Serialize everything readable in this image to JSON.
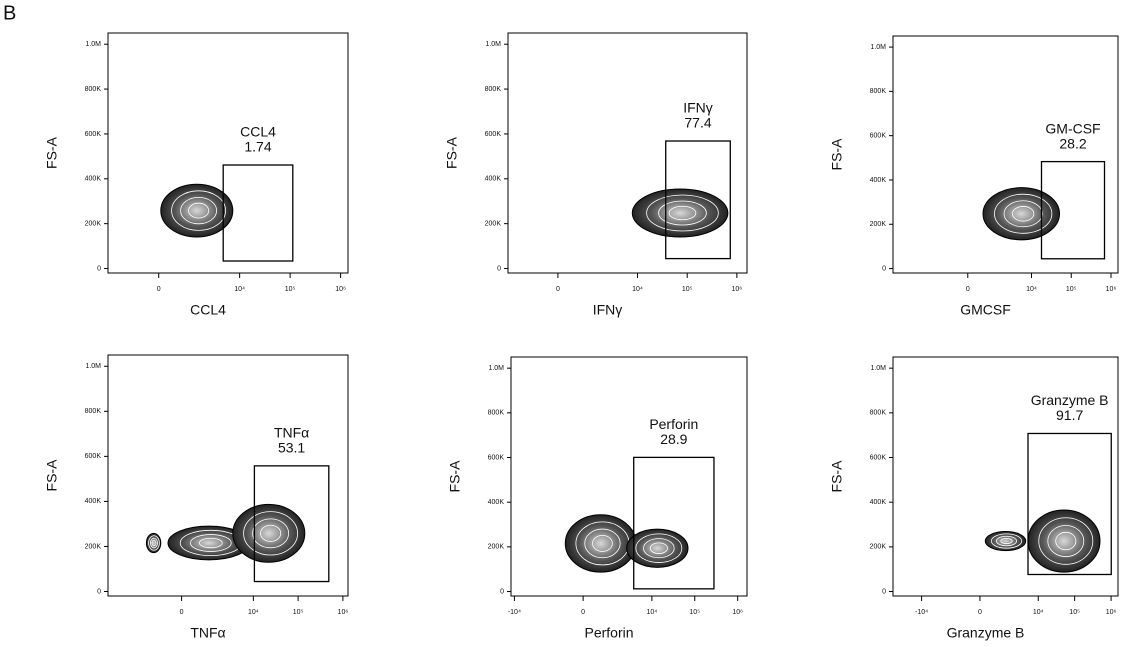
{
  "figure_label": "B",
  "chart_data": [
    {
      "type": "contour",
      "x_label": "CCL4",
      "y_label": "FS-A",
      "gate": {
        "label": "CCL4",
        "value": 1.74
      },
      "xlim": [
        -2500,
        1400000
      ],
      "xticks": [
        0,
        {
          "value": 10000,
          "label": "10⁴"
        },
        {
          "value": 100000,
          "label": "10⁵"
        },
        {
          "value": 1000000,
          "label": "10⁶"
        }
      ],
      "ylim": [
        -20000,
        1050000
      ],
      "yticks": [
        0,
        {
          "value": 200000,
          "label": "200K"
        },
        {
          "value": 400000,
          "label": "400K"
        },
        {
          "value": 600000,
          "label": "600K"
        },
        {
          "value": 800000,
          "label": "800K"
        },
        {
          "value": 1000000,
          "label": "1.0M"
        }
      ]
    },
    {
      "type": "contour",
      "x_label": "IFNγ",
      "y_label": "FS-A",
      "gate": {
        "label": "IFNγ",
        "value": 77.4
      },
      "xlim": [
        -2500,
        1600000
      ],
      "xticks": [
        0,
        {
          "value": 10000,
          "label": "10⁴"
        },
        {
          "value": 100000,
          "label": "10⁵"
        },
        {
          "value": 1000000,
          "label": "10⁶"
        }
      ],
      "ylim": [
        -20000,
        1050000
      ],
      "yticks": [
        0,
        {
          "value": 200000,
          "label": "200K"
        },
        {
          "value": 400000,
          "label": "400K"
        },
        {
          "value": 600000,
          "label": "600K"
        },
        {
          "value": 800000,
          "label": "800K"
        },
        {
          "value": 1000000,
          "label": "1.0M"
        }
      ]
    },
    {
      "type": "contour",
      "x_label": "GMCSF",
      "y_label": "FS-A",
      "gate": {
        "label": "GM-CSF",
        "value": 28.2
      },
      "xlim": [
        -19000,
        1500000
      ],
      "xticks": [
        0,
        {
          "value": 10000,
          "label": "10⁴"
        },
        {
          "value": 100000,
          "label": "10⁵"
        },
        {
          "value": 1000000,
          "label": "10⁶"
        }
      ],
      "ylim": [
        -20000,
        1050000
      ],
      "yticks": [
        0,
        {
          "value": 200000,
          "label": "200K"
        },
        {
          "value": 400000,
          "label": "400K"
        },
        {
          "value": 600000,
          "label": "600K"
        },
        {
          "value": 800000,
          "label": "800K"
        },
        {
          "value": 1000000,
          "label": "1.0M"
        }
      ]
    },
    {
      "type": "contour",
      "x_label": "TNFα",
      "y_label": "FS-A",
      "gate": {
        "label": "TNFα",
        "value": 53.1
      },
      "xlim": [
        -11000,
        1300000
      ],
      "xticks": [
        0,
        {
          "value": 10000,
          "label": "10⁴"
        },
        {
          "value": 100000,
          "label": "10⁵"
        },
        {
          "value": 1000000,
          "label": "10⁶"
        }
      ],
      "ylim": [
        -20000,
        1050000
      ],
      "yticks": [
        0,
        {
          "value": 200000,
          "label": "200K"
        },
        {
          "value": 400000,
          "label": "400K"
        },
        {
          "value": 600000,
          "label": "600K"
        },
        {
          "value": 800000,
          "label": "800K"
        },
        {
          "value": 1000000,
          "label": "1.0M"
        }
      ]
    },
    {
      "type": "contour",
      "x_label": "Perforin",
      "y_label": "FS-A",
      "gate": {
        "label": "Perforin",
        "value": 28.9
      },
      "xlim": [
        -12000,
        1650000
      ],
      "xticks": [
        {
          "value": -10000,
          "label": "-10⁴"
        },
        0,
        {
          "value": 10000,
          "label": "10⁴"
        },
        {
          "value": 100000,
          "label": "10⁵"
        },
        {
          "value": 1000000,
          "label": "10⁶"
        }
      ],
      "ylim": [
        -20000,
        1050000
      ],
      "yticks": [
        0,
        {
          "value": 200000,
          "label": "200K"
        },
        {
          "value": 400000,
          "label": "400K"
        },
        {
          "value": 600000,
          "label": "600K"
        },
        {
          "value": 800000,
          "label": "800K"
        },
        {
          "value": 1000000,
          "label": "1.0M"
        }
      ]
    },
    {
      "type": "contour",
      "x_label": "Granzyme B",
      "y_label": "FS-A",
      "gate": {
        "label": "Granzyme B",
        "value": 91.7
      },
      "xlim": [
        -61000,
        1550000
      ],
      "xticks": [
        {
          "value": -10000,
          "label": "-10⁴"
        },
        0,
        {
          "value": 10000,
          "label": "10⁴"
        },
        {
          "value": 100000,
          "label": "10⁵"
        },
        {
          "value": 1000000,
          "label": "10⁶"
        }
      ],
      "ylim": [
        -20000,
        1050000
      ],
      "yticks": [
        0,
        {
          "value": 200000,
          "label": "200K"
        },
        {
          "value": 400000,
          "label": "400K"
        },
        {
          "value": 600000,
          "label": "600K"
        },
        {
          "value": 800000,
          "label": "800K"
        },
        {
          "value": 1000000,
          "label": "1.0M"
        }
      ]
    }
  ]
}
